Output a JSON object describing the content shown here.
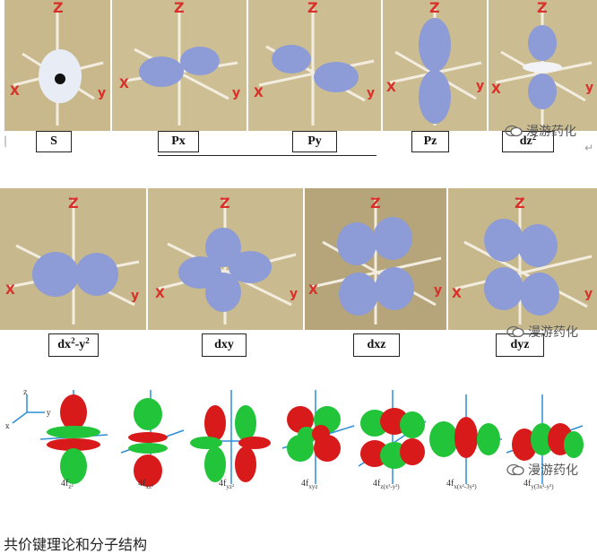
{
  "row1": {
    "labels": [
      "S",
      "Px",
      "Py",
      "Pz",
      "dz"
    ],
    "dz_sup": "2"
  },
  "row2": {
    "labels": {
      "dx2y2_base": "dx",
      "dx2y2_sup1": "2",
      "dx2y2_mid": "-y",
      "dx2y2_sup2": "2",
      "dxy": "dxy",
      "dxz": "dxz",
      "dyz": "dyz"
    }
  },
  "axes": {
    "z": "Z",
    "x": "X",
    "y": "y"
  },
  "f_orbitals": [
    {
      "base": "4f",
      "sub": "z³"
    },
    {
      "base": "4f",
      "sub": "xz²"
    },
    {
      "base": "4f",
      "sub": "yz²"
    },
    {
      "base": "4f",
      "sub": "xyz"
    },
    {
      "base": "4f",
      "sub": "z(x²-y²)"
    },
    {
      "base": "4f",
      "sub": "x(x²-3y²)"
    },
    {
      "base": "4f",
      "sub": "y(3x²-y²)"
    }
  ],
  "watermark": "漫游药化",
  "footer": "共价键理论和分子结构",
  "colors": {
    "photo_bg": "#c9b98c",
    "orbital_blue": "#8d9bd6",
    "axis_red": "#d8312a",
    "f_red": "#d81a1a",
    "f_green": "#22c43a",
    "f_axis": "#2a8fd8"
  }
}
